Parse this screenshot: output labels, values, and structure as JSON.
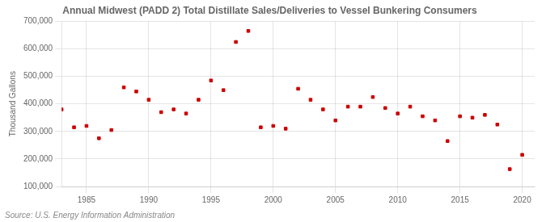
{
  "chart_data": {
    "type": "scatter",
    "title": "Annual Midwest (PADD 2) Total Distillate Sales/Deliveries to Vessel Bunkering Consumers",
    "ylabel": "Thousand Gallons",
    "annotations": [
      "Source: U.S. Energy Information Administration"
    ],
    "x": [
      1983,
      1984,
      1985,
      1986,
      1987,
      1988,
      1989,
      1990,
      1991,
      1992,
      1993,
      1994,
      1995,
      1996,
      1997,
      1998,
      1999,
      2000,
      2001,
      2002,
      2003,
      2004,
      2005,
      2006,
      2007,
      2008,
      2009,
      2010,
      2011,
      2012,
      2013,
      2014,
      2015,
      2016,
      2017,
      2018,
      2019,
      2020
    ],
    "values": [
      380000,
      315000,
      320000,
      275000,
      305000,
      460000,
      445000,
      415000,
      370000,
      380000,
      365000,
      415000,
      485000,
      450000,
      625000,
      665000,
      315000,
      320000,
      310000,
      455000,
      415000,
      380000,
      340000,
      390000,
      390000,
      425000,
      385000,
      365000,
      390000,
      355000,
      340000,
      265000,
      355000,
      350000,
      360000,
      325000,
      163000,
      215000
    ],
    "color": "#cc0000",
    "marker": "square",
    "xlim": [
      1983,
      2021
    ],
    "xticks": [
      1985,
      1990,
      1995,
      2000,
      2005,
      2010,
      2015,
      2020
    ],
    "ylim": [
      100000,
      700000
    ],
    "yticks": [
      {
        "value": 100000,
        "label": "100,000"
      },
      {
        "value": 200000,
        "label": "200,000"
      },
      {
        "value": 300000,
        "label": "300,000"
      },
      {
        "value": 400000,
        "label": "400,000"
      },
      {
        "value": 500000,
        "label": "500,000"
      },
      {
        "value": 600000,
        "label": "600,000"
      },
      {
        "value": 700000,
        "label": "700,000"
      }
    ],
    "grid": true
  }
}
